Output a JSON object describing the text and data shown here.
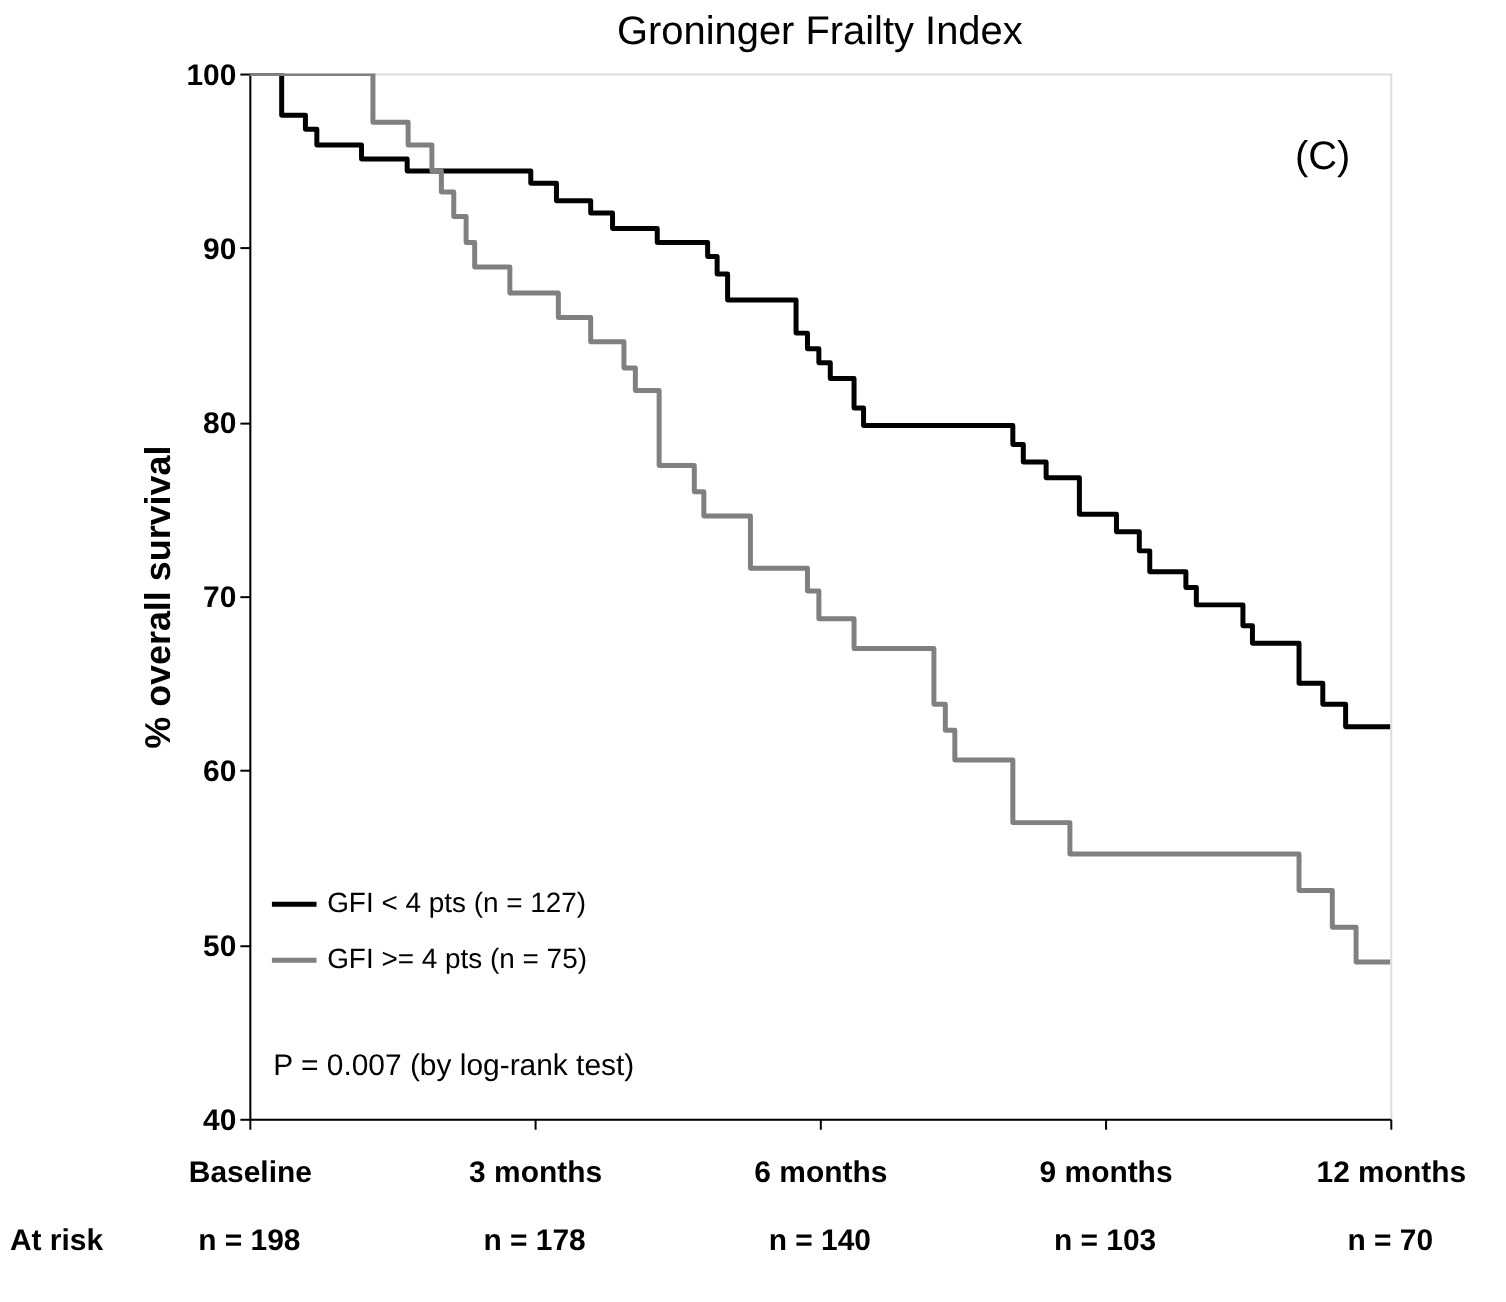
{
  "chart_data": {
    "type": "step",
    "title": "Groninger Frailty Index",
    "ylabel": "% overall survival",
    "xlim": [
      0,
      12
    ],
    "ylim": [
      40,
      100
    ],
    "xticks": [
      {
        "value": 0,
        "label": "Baseline"
      },
      {
        "value": 3,
        "label": "3 months"
      },
      {
        "value": 6,
        "label": "6 months"
      },
      {
        "value": 9,
        "label": "9 months"
      },
      {
        "value": 12,
        "label": "12 months"
      }
    ],
    "yticks": [
      40,
      50,
      60,
      70,
      80,
      90,
      100
    ],
    "grid": false,
    "legend": "bottom left",
    "line_style": "solid",
    "marker": "none",
    "annotations": [
      "(C)",
      "P = 0.007 (by log-rank test)",
      "At risk",
      "n = 198",
      "n = 178",
      "n = 140",
      "n = 103",
      "n = 70"
    ],
    "series": [
      {
        "name": "GFI < 4 pts (n = 127)",
        "color": "#000000",
        "x": [
          0,
          0.34,
          0.59,
          0.71,
          1.18,
          1.66,
          2.96,
          3.23,
          3.59,
          3.82,
          4.29,
          4.82,
          4.92,
          5.03,
          5.75,
          5.87,
          5.99,
          6.11,
          6.36,
          6.46,
          8.03,
          8.14,
          8.38,
          8.73,
          9.12,
          9.36,
          9.47,
          9.85,
          9.96,
          10.45,
          10.55,
          11.04,
          11.29,
          11.53,
          12
        ],
        "values": [
          100,
          97.6,
          96.8,
          95.9,
          95.1,
          94.4,
          93.7,
          92.7,
          92.0,
          91.1,
          90.3,
          89.5,
          88.5,
          87.0,
          85.1,
          84.2,
          83.4,
          82.5,
          80.8,
          79.8,
          78.7,
          77.7,
          76.8,
          74.7,
          73.7,
          72.6,
          71.4,
          70.5,
          69.5,
          68.3,
          67.3,
          65.0,
          63.8,
          62.5,
          62.5
        ]
      },
      {
        "name": "GFI >= 4 pts (n = 75)",
        "color": "#808080",
        "x": [
          0,
          1.3,
          1.67,
          1.92,
          2.02,
          2.15,
          2.28,
          2.37,
          2.74,
          3.25,
          3.59,
          3.94,
          4.06,
          4.31,
          4.68,
          4.78,
          5.27,
          5.87,
          5.99,
          6.36,
          7.2,
          7.32,
          7.42,
          8.03,
          8.63,
          11.04,
          11.39,
          11.64,
          12
        ],
        "values": [
          100,
          97.2,
          95.9,
          94.4,
          93.2,
          91.8,
          90.3,
          88.9,
          87.4,
          86.0,
          84.6,
          83.1,
          81.8,
          77.5,
          76.0,
          74.6,
          71.6,
          70.3,
          68.7,
          67.0,
          63.8,
          62.3,
          60.6,
          57.0,
          55.2,
          53.1,
          51.0,
          49.0,
          49.0
        ]
      }
    ]
  }
}
